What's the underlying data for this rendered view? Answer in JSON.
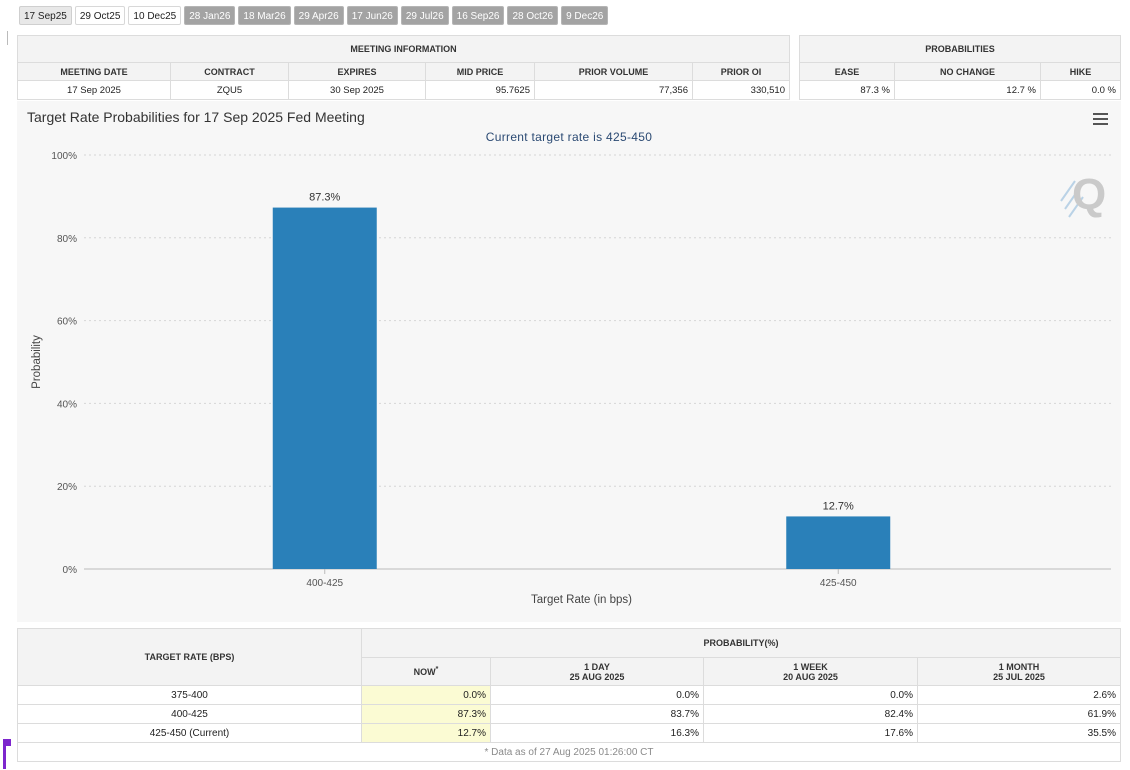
{
  "tabs": [
    {
      "label": "17 Sep25",
      "state": "active"
    },
    {
      "label": "29 Oct25",
      "state": "light"
    },
    {
      "label": "10 Dec25",
      "state": "light"
    },
    {
      "label": "28 Jan26",
      "state": "dark"
    },
    {
      "label": "18 Mar26",
      "state": "dark"
    },
    {
      "label": "29 Apr26",
      "state": "dark"
    },
    {
      "label": "17 Jun26",
      "state": "dark"
    },
    {
      "label": "29 Jul26",
      "state": "dark"
    },
    {
      "label": "16 Sep26",
      "state": "dark"
    },
    {
      "label": "28 Oct26",
      "state": "dark"
    },
    {
      "label": "9 Dec26",
      "state": "dark"
    }
  ],
  "meeting_info": {
    "title": "MEETING INFORMATION",
    "headers": [
      "MEETING DATE",
      "CONTRACT",
      "EXPIRES",
      "MID PRICE",
      "PRIOR VOLUME",
      "PRIOR OI"
    ],
    "row": [
      "17 Sep 2025",
      "ZQU5",
      "30 Sep 2025",
      "95.7625",
      "77,356",
      "330,510"
    ]
  },
  "probabilities": {
    "title": "PROBABILITIES",
    "headers": [
      "EASE",
      "NO CHANGE",
      "HIKE"
    ],
    "row": [
      "87.3 %",
      "12.7 %",
      "0.0 %"
    ]
  },
  "chart": {
    "title": "Target Rate Probabilities for 17 Sep 2025 Fed Meeting",
    "subtitle": "Current target rate is 425-450",
    "bar_color": "#2a80b9"
  },
  "chart_data": {
    "type": "bar",
    "title": "Target Rate Probabilities for 17 Sep 2025 Fed Meeting",
    "subtitle": "Current target rate is 425-450",
    "categories": [
      "400-425",
      "425-450"
    ],
    "values": [
      87.3,
      12.7
    ],
    "data_labels": [
      "87.3%",
      "12.7%"
    ],
    "xlabel": "Target Rate (in bps)",
    "ylabel": "Probability",
    "ylim": [
      0,
      100
    ],
    "yticks": [
      "0%",
      "20%",
      "40%",
      "60%",
      "80%",
      "100%"
    ],
    "grid": true
  },
  "rate_table": {
    "col_header": "TARGET RATE (BPS)",
    "group_header": "PROBABILITY(%)",
    "sub_headers": [
      {
        "line1": "NOW",
        "line2": "",
        "mark": "*"
      },
      {
        "line1": "1 DAY",
        "line2": "25 AUG 2025",
        "mark": ""
      },
      {
        "line1": "1 WEEK",
        "line2": "20 AUG 2025",
        "mark": ""
      },
      {
        "line1": "1 MONTH",
        "line2": "25 JUL 2025",
        "mark": ""
      }
    ],
    "rows": [
      {
        "rate": "375-400",
        "values": [
          "0.0%",
          "0.0%",
          "0.0%",
          "2.6%"
        ]
      },
      {
        "rate": "400-425",
        "values": [
          "87.3%",
          "83.7%",
          "82.4%",
          "61.9%"
        ]
      },
      {
        "rate": "425-450 (Current)",
        "values": [
          "12.7%",
          "16.3%",
          "17.6%",
          "35.5%"
        ]
      }
    ],
    "footnote": "* Data as of 27 Aug 2025 01:26:00 CT"
  }
}
